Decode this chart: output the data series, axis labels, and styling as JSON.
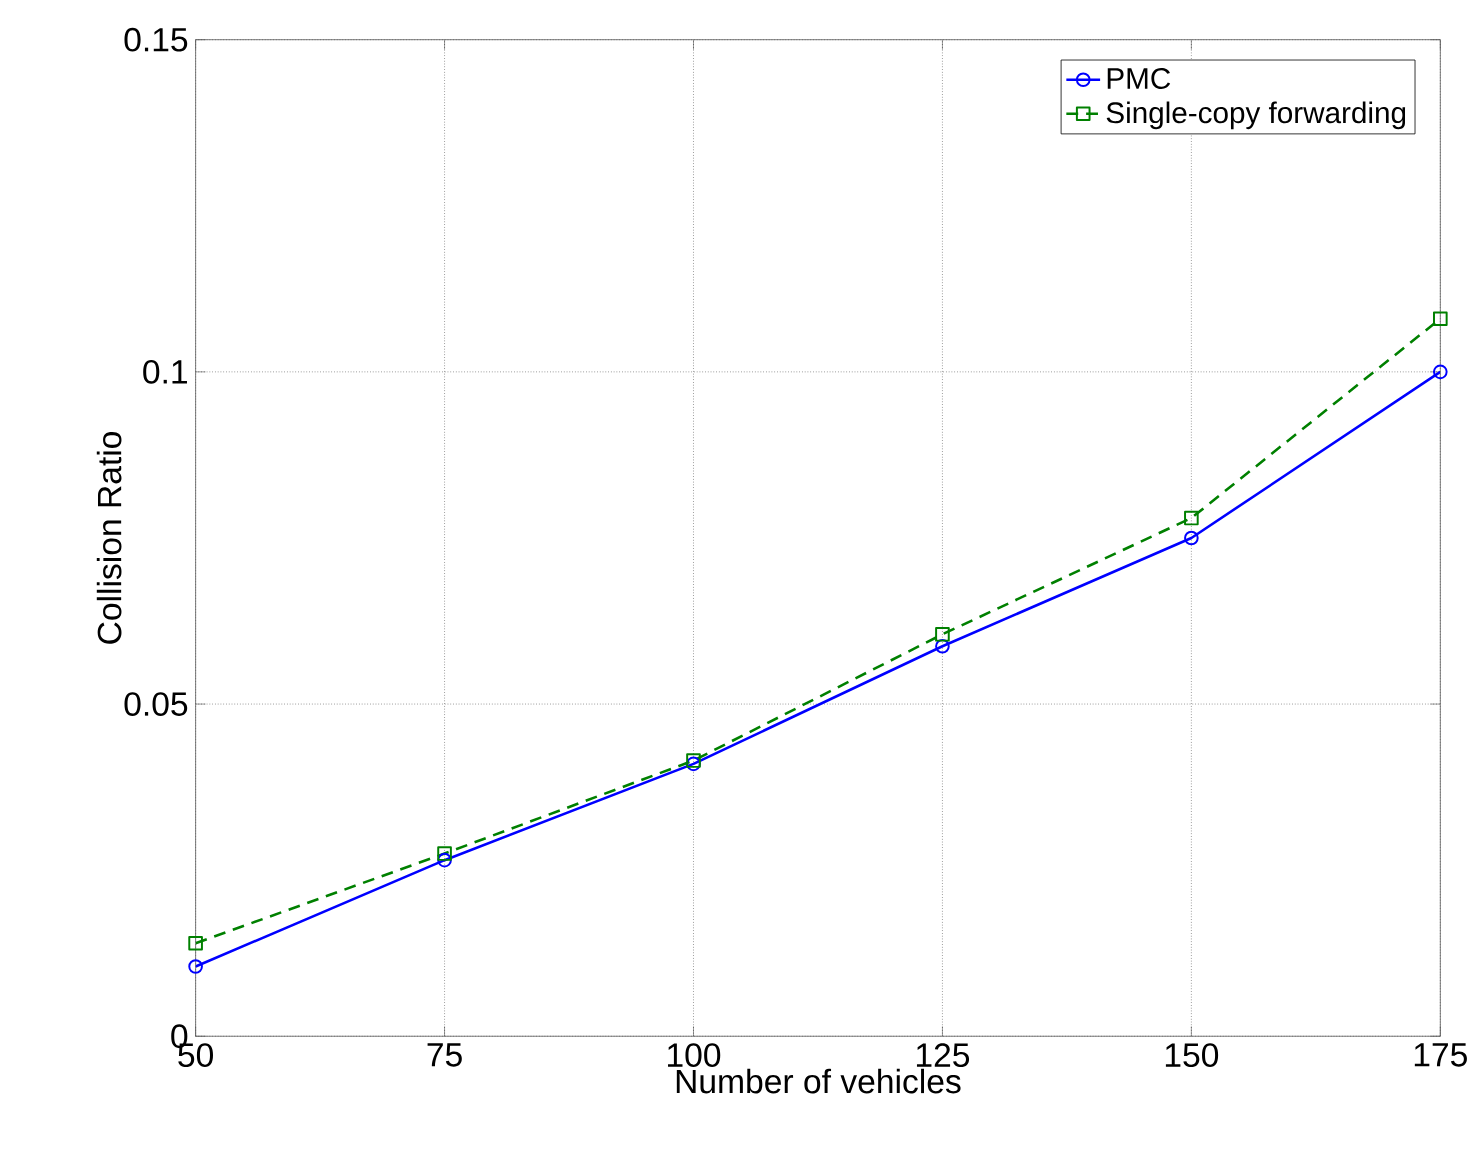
{
  "chart_data": {
    "type": "line",
    "xlabel": "Number of vehicles",
    "ylabel": "Collision Ratio",
    "x": [
      50,
      75,
      100,
      125,
      150,
      175
    ],
    "series": [
      {
        "name": "PMC",
        "color": "#0000ff",
        "marker": "circle",
        "line_style": "solid",
        "values": [
          0.0105,
          0.0265,
          0.041,
          0.0587,
          0.075,
          0.1
        ]
      },
      {
        "name": "Single-copy forwarding",
        "color": "#008000",
        "marker": "square",
        "line_style": "dashed",
        "values": [
          0.014,
          0.0275,
          0.0415,
          0.0605,
          0.078,
          0.108
        ]
      }
    ],
    "xlim": [
      50,
      175
    ],
    "xticks": [
      50,
      75,
      100,
      125,
      150,
      175
    ],
    "ylim": [
      0,
      0.15
    ],
    "yticks": [
      0,
      0.05,
      0.1,
      0.15
    ],
    "grid": true,
    "legend": "top right"
  }
}
